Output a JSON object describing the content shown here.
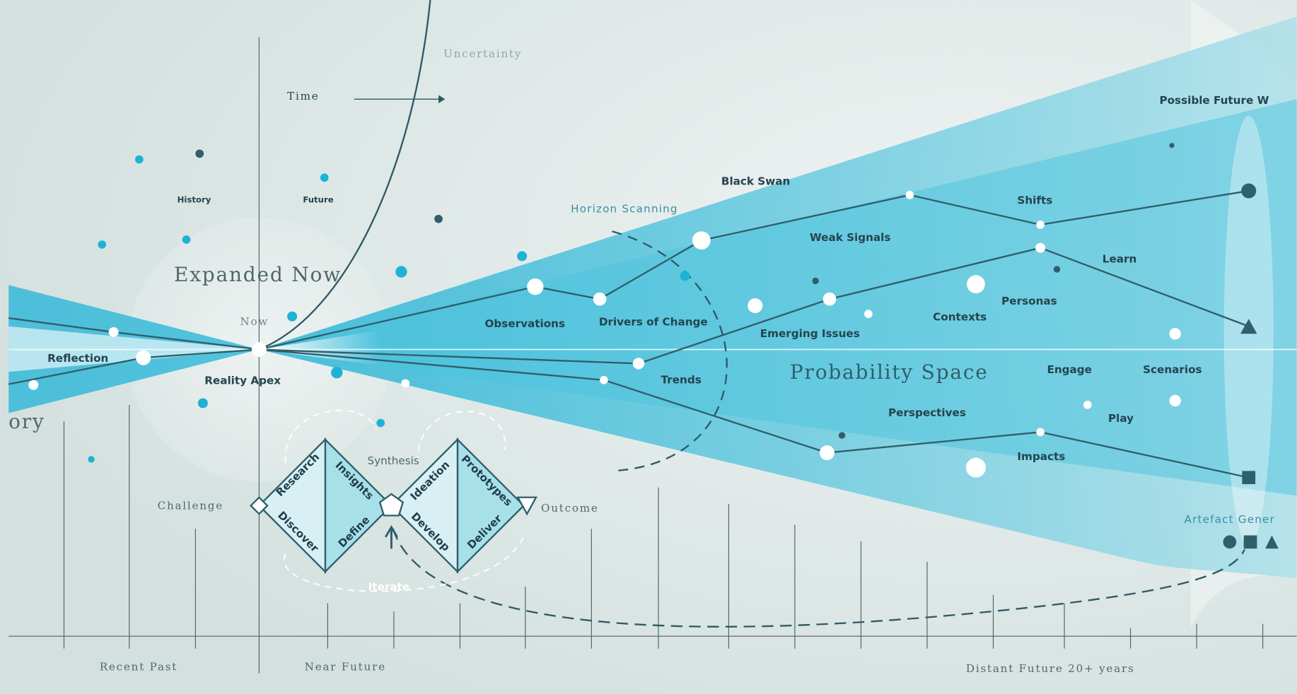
{
  "timeline": {
    "uncertainty": "Uncertainty",
    "time": "Time",
    "history": "History",
    "future": "Future",
    "expanded_now": "Expanded Now",
    "now": "Now",
    "history_cut": "ory",
    "reflection": "Reflection",
    "reality_apex": "Reality Apex"
  },
  "cone": {
    "horizon_scanning": "Horizon Scanning",
    "black_swan": "Black Swan",
    "possible_future": "Possible Future W",
    "shifts": "Shifts",
    "weak_signals": "Weak Signals",
    "learn": "Learn",
    "personas": "Personas",
    "contexts": "Contexts",
    "observations": "Observations",
    "drivers_of_change": "Drivers of Change",
    "emerging_issues": "Emerging Issues",
    "trends": "Trends",
    "probability_space": "Probability Space",
    "engage": "Engage",
    "scenarios": "Scenarios",
    "perspectives": "Perspectives",
    "play": "Play",
    "impacts": "Impacts",
    "artefact": "Artefact Gener"
  },
  "design_process": {
    "challenge": "Challenge",
    "research": "Research",
    "insights": "Insights",
    "synthesis": "Synthesis",
    "ideation": "Ideation",
    "prototypes": "Prototypes",
    "discover": "Discover",
    "define": "Define",
    "develop": "Develop",
    "deliver": "Deliver",
    "outcome": "Outcome",
    "iterate": "Iterate"
  },
  "axis": {
    "recent_past": "Recent Past",
    "near_future": "Near Future",
    "distant_future": "Distant Future 20+ years"
  }
}
